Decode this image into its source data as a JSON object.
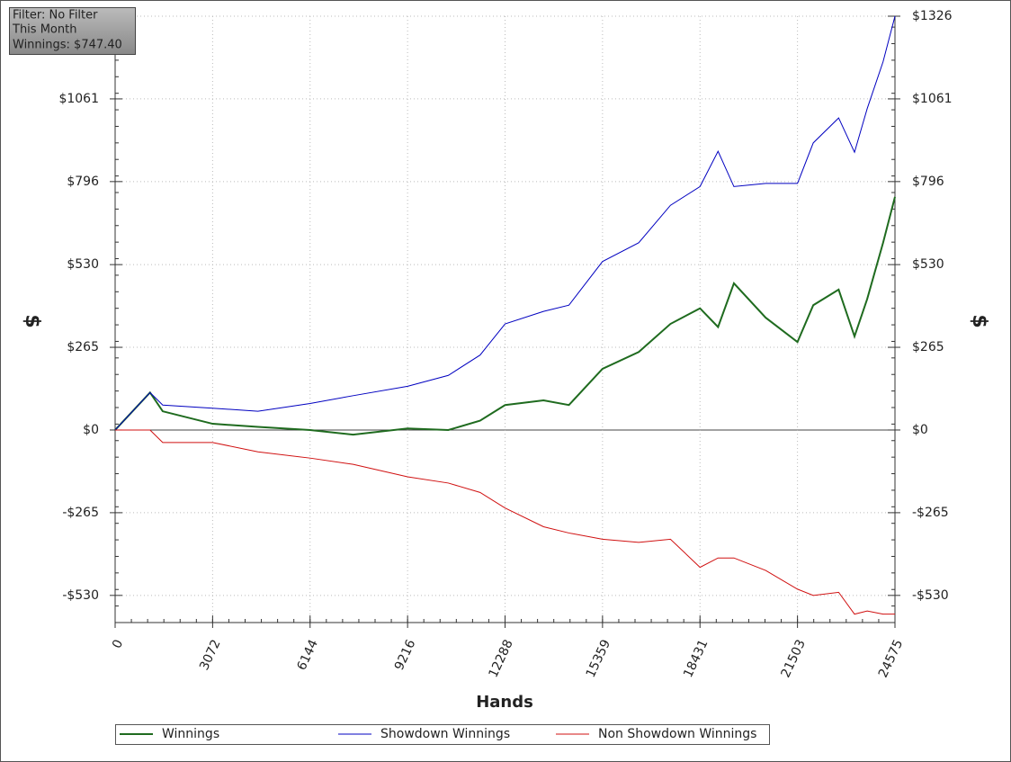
{
  "chart_data": {
    "type": "line",
    "annotations": [
      "Filter: No Filter",
      "This Month",
      "Winnings: $747.40"
    ],
    "x_label": "Hands",
    "y_label": "$",
    "y2_label": "$",
    "x": [
      0,
      1100,
      1500,
      3072,
      4500,
      6144,
      7500,
      9216,
      10500,
      11500,
      12288,
      13500,
      14300,
      15359,
      16500,
      17500,
      18431,
      19000,
      19500,
      20500,
      21503,
      22000,
      22800,
      23300,
      23700,
      24200,
      24575
    ],
    "series": [
      {
        "name": "Winnings",
        "color": "#1f6b1f",
        "values": [
          0,
          120,
          60,
          20,
          10,
          0,
          -15,
          5,
          0,
          30,
          80,
          95,
          80,
          196,
          250,
          340,
          390,
          330,
          470,
          360,
          282,
          400,
          450,
          300,
          420,
          600,
          747
        ]
      },
      {
        "name": "Showdown Winnings",
        "color": "#0000c0",
        "values": [
          0,
          120,
          80,
          70,
          60,
          85,
          110,
          140,
          175,
          240,
          340,
          380,
          400,
          540,
          600,
          720,
          780,
          893,
          780,
          790,
          790,
          920,
          1000,
          890,
          1030,
          1180,
          1326
        ]
      },
      {
        "name": "Non Showdown Winnings",
        "color": "#d01010",
        "values": [
          0,
          0,
          -40,
          -40,
          -70,
          -90,
          -110,
          -150,
          -170,
          -200,
          -250,
          -310,
          -330,
          -350,
          -360,
          -350,
          -440,
          -410,
          -410,
          -450,
          -510,
          -530,
          -520,
          -590,
          -580,
          -590,
          -590
        ]
      }
    ],
    "xlim": [
      0,
      24575
    ],
    "xticks": [
      0,
      3072,
      6144,
      9216,
      12288,
      15359,
      18431,
      21503,
      24575
    ],
    "ylim": [
      -617,
      1326
    ],
    "yticks": [
      {
        "value": -530,
        "label": "-$530"
      },
      {
        "value": -265,
        "label": "-$265"
      },
      {
        "value": 0,
        "label": "$0"
      },
      {
        "value": 265,
        "label": "$265"
      },
      {
        "value": 530,
        "label": "$530"
      },
      {
        "value": 796,
        "label": "$796"
      },
      {
        "value": 1061,
        "label": "$1061"
      },
      {
        "value": 1326,
        "label": "$1326"
      }
    ],
    "y2lim": [
      -617,
      1326
    ],
    "y2ticks": [
      {
        "value": -530,
        "label": "-$530"
      },
      {
        "value": -265,
        "label": "-$265"
      },
      {
        "value": 0,
        "label": "$0"
      },
      {
        "value": 265,
        "label": "$265"
      },
      {
        "value": 530,
        "label": "$530"
      },
      {
        "value": 796,
        "label": "$796"
      },
      {
        "value": 1061,
        "label": "$1061"
      },
      {
        "value": 1326,
        "label": "$1326"
      }
    ],
    "grid": true
  }
}
